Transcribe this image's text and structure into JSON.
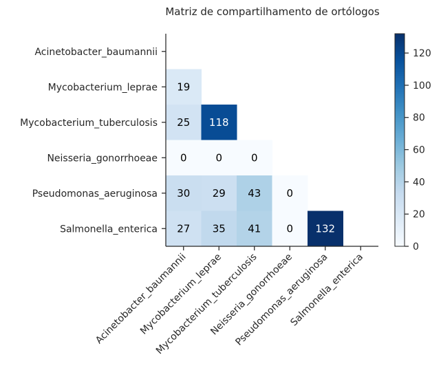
{
  "chart_data": {
    "type": "heatmap",
    "title": "Matriz de compartilhamento de ortólogos",
    "xlabel": "",
    "ylabel": "",
    "categories": [
      "Acinetobacter_baumannii",
      "Mycobacterium_leprae",
      "Mycobacterium_tuberculosis",
      "Neisseria_gonorrhoeae",
      "Pseudomonas_aeruginosa",
      "Salmonella_enterica"
    ],
    "values": [
      [
        null,
        null,
        null,
        null,
        null,
        null
      ],
      [
        19,
        null,
        null,
        null,
        null,
        null
      ],
      [
        25,
        118,
        null,
        null,
        null,
        null
      ],
      [
        0,
        0,
        0,
        null,
        null,
        null
      ],
      [
        30,
        29,
        43,
        0,
        null,
        null
      ],
      [
        27,
        35,
        41,
        0,
        132,
        null
      ]
    ],
    "mask": "upper-triangle-and-diagonal",
    "colormap": "Blues",
    "colors": [
      "#f7fbff",
      "#deebf7",
      "#c6dbef",
      "#9ecae1",
      "#6baed6",
      "#4292c6",
      "#2171b5",
      "#08519c",
      "#08306b"
    ],
    "colorbar": {
      "range": [
        0,
        132
      ],
      "ticks": [
        0,
        20,
        40,
        60,
        80,
        100,
        120
      ]
    },
    "grid": false,
    "legend": "colorbar-right"
  }
}
